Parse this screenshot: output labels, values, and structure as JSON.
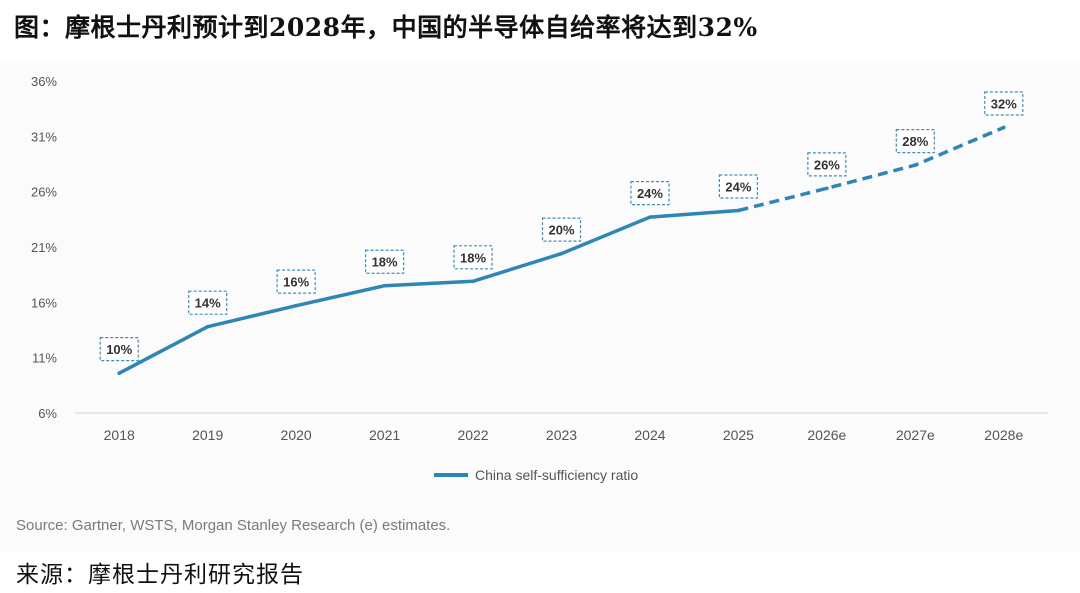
{
  "figure_title": "图：摩根士丹利预计到2028年，中国的半导体自给率将达到32%",
  "source_note": "Source: Gartner, WSTS, Morgan Stanley Research (e) estimates.",
  "footer": "来源：摩根士丹利研究报告",
  "chart_data": {
    "type": "line",
    "title": "",
    "xlabel": "",
    "ylabel": "",
    "categories": [
      "2018",
      "2019",
      "2020",
      "2021",
      "2022",
      "2023",
      "2024",
      "2025",
      "2026e",
      "2027e",
      "2028e"
    ],
    "series": [
      {
        "name": "China self-sufficiency ratio",
        "values": [
          9.6,
          13.8,
          15.7,
          17.5,
          17.9,
          20.4,
          23.7,
          24.3,
          26.3,
          28.4,
          31.8
        ],
        "labels": [
          "10%",
          "14%",
          "16%",
          "18%",
          "18%",
          "20%",
          "24%",
          "24%",
          "26%",
          "28%",
          "32%"
        ],
        "estimate_start_index": 7,
        "color": "#2e86b6"
      }
    ],
    "yticks": [
      "6%",
      "11%",
      "16%",
      "21%",
      "26%",
      "31%",
      "36%"
    ],
    "ytick_values": [
      6,
      11,
      16,
      21,
      26,
      31,
      36
    ],
    "ylim": [
      6,
      36
    ],
    "grid": false,
    "legend": "bottom-center"
  }
}
